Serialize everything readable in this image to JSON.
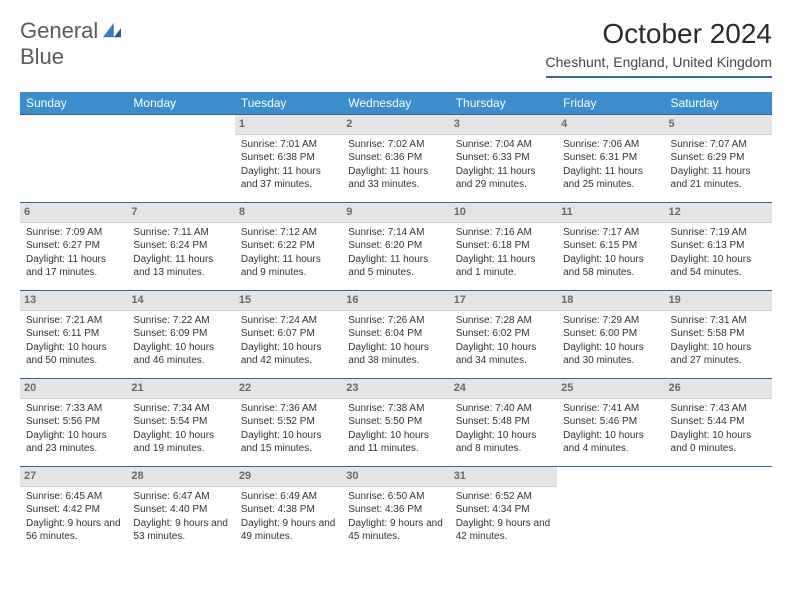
{
  "brand": {
    "line1": "General",
    "line2": "Blue"
  },
  "title": "October 2024",
  "location": "Cheshunt, England, United Kingdom",
  "colors": {
    "header_bg": "#3c8dcc",
    "header_text": "#ffffff",
    "border": "#35689e",
    "daynum_bg": "#e4e4e4",
    "text": "#333333",
    "logo_gray": "#5b5b5b",
    "logo_blue": "#3a7abf",
    "page_bg": "#ffffff"
  },
  "typography": {
    "title_fontsize": 28,
    "location_fontsize": 14,
    "header_fontsize": 12,
    "daynum_fontsize": 11,
    "cell_fontsize": 10
  },
  "weekdays": [
    "Sunday",
    "Monday",
    "Tuesday",
    "Wednesday",
    "Thursday",
    "Friday",
    "Saturday"
  ],
  "weeks": [
    [
      null,
      null,
      {
        "n": "1",
        "sunrise": "Sunrise: 7:01 AM",
        "sunset": "Sunset: 6:38 PM",
        "daylight": "Daylight: 11 hours and 37 minutes."
      },
      {
        "n": "2",
        "sunrise": "Sunrise: 7:02 AM",
        "sunset": "Sunset: 6:36 PM",
        "daylight": "Daylight: 11 hours and 33 minutes."
      },
      {
        "n": "3",
        "sunrise": "Sunrise: 7:04 AM",
        "sunset": "Sunset: 6:33 PM",
        "daylight": "Daylight: 11 hours and 29 minutes."
      },
      {
        "n": "4",
        "sunrise": "Sunrise: 7:06 AM",
        "sunset": "Sunset: 6:31 PM",
        "daylight": "Daylight: 11 hours and 25 minutes."
      },
      {
        "n": "5",
        "sunrise": "Sunrise: 7:07 AM",
        "sunset": "Sunset: 6:29 PM",
        "daylight": "Daylight: 11 hours and 21 minutes."
      }
    ],
    [
      {
        "n": "6",
        "sunrise": "Sunrise: 7:09 AM",
        "sunset": "Sunset: 6:27 PM",
        "daylight": "Daylight: 11 hours and 17 minutes."
      },
      {
        "n": "7",
        "sunrise": "Sunrise: 7:11 AM",
        "sunset": "Sunset: 6:24 PM",
        "daylight": "Daylight: 11 hours and 13 minutes."
      },
      {
        "n": "8",
        "sunrise": "Sunrise: 7:12 AM",
        "sunset": "Sunset: 6:22 PM",
        "daylight": "Daylight: 11 hours and 9 minutes."
      },
      {
        "n": "9",
        "sunrise": "Sunrise: 7:14 AM",
        "sunset": "Sunset: 6:20 PM",
        "daylight": "Daylight: 11 hours and 5 minutes."
      },
      {
        "n": "10",
        "sunrise": "Sunrise: 7:16 AM",
        "sunset": "Sunset: 6:18 PM",
        "daylight": "Daylight: 11 hours and 1 minute."
      },
      {
        "n": "11",
        "sunrise": "Sunrise: 7:17 AM",
        "sunset": "Sunset: 6:15 PM",
        "daylight": "Daylight: 10 hours and 58 minutes."
      },
      {
        "n": "12",
        "sunrise": "Sunrise: 7:19 AM",
        "sunset": "Sunset: 6:13 PM",
        "daylight": "Daylight: 10 hours and 54 minutes."
      }
    ],
    [
      {
        "n": "13",
        "sunrise": "Sunrise: 7:21 AM",
        "sunset": "Sunset: 6:11 PM",
        "daylight": "Daylight: 10 hours and 50 minutes."
      },
      {
        "n": "14",
        "sunrise": "Sunrise: 7:22 AM",
        "sunset": "Sunset: 6:09 PM",
        "daylight": "Daylight: 10 hours and 46 minutes."
      },
      {
        "n": "15",
        "sunrise": "Sunrise: 7:24 AM",
        "sunset": "Sunset: 6:07 PM",
        "daylight": "Daylight: 10 hours and 42 minutes."
      },
      {
        "n": "16",
        "sunrise": "Sunrise: 7:26 AM",
        "sunset": "Sunset: 6:04 PM",
        "daylight": "Daylight: 10 hours and 38 minutes."
      },
      {
        "n": "17",
        "sunrise": "Sunrise: 7:28 AM",
        "sunset": "Sunset: 6:02 PM",
        "daylight": "Daylight: 10 hours and 34 minutes."
      },
      {
        "n": "18",
        "sunrise": "Sunrise: 7:29 AM",
        "sunset": "Sunset: 6:00 PM",
        "daylight": "Daylight: 10 hours and 30 minutes."
      },
      {
        "n": "19",
        "sunrise": "Sunrise: 7:31 AM",
        "sunset": "Sunset: 5:58 PM",
        "daylight": "Daylight: 10 hours and 27 minutes."
      }
    ],
    [
      {
        "n": "20",
        "sunrise": "Sunrise: 7:33 AM",
        "sunset": "Sunset: 5:56 PM",
        "daylight": "Daylight: 10 hours and 23 minutes."
      },
      {
        "n": "21",
        "sunrise": "Sunrise: 7:34 AM",
        "sunset": "Sunset: 5:54 PM",
        "daylight": "Daylight: 10 hours and 19 minutes."
      },
      {
        "n": "22",
        "sunrise": "Sunrise: 7:36 AM",
        "sunset": "Sunset: 5:52 PM",
        "daylight": "Daylight: 10 hours and 15 minutes."
      },
      {
        "n": "23",
        "sunrise": "Sunrise: 7:38 AM",
        "sunset": "Sunset: 5:50 PM",
        "daylight": "Daylight: 10 hours and 11 minutes."
      },
      {
        "n": "24",
        "sunrise": "Sunrise: 7:40 AM",
        "sunset": "Sunset: 5:48 PM",
        "daylight": "Daylight: 10 hours and 8 minutes."
      },
      {
        "n": "25",
        "sunrise": "Sunrise: 7:41 AM",
        "sunset": "Sunset: 5:46 PM",
        "daylight": "Daylight: 10 hours and 4 minutes."
      },
      {
        "n": "26",
        "sunrise": "Sunrise: 7:43 AM",
        "sunset": "Sunset: 5:44 PM",
        "daylight": "Daylight: 10 hours and 0 minutes."
      }
    ],
    [
      {
        "n": "27",
        "sunrise": "Sunrise: 6:45 AM",
        "sunset": "Sunset: 4:42 PM",
        "daylight": "Daylight: 9 hours and 56 minutes."
      },
      {
        "n": "28",
        "sunrise": "Sunrise: 6:47 AM",
        "sunset": "Sunset: 4:40 PM",
        "daylight": "Daylight: 9 hours and 53 minutes."
      },
      {
        "n": "29",
        "sunrise": "Sunrise: 6:49 AM",
        "sunset": "Sunset: 4:38 PM",
        "daylight": "Daylight: 9 hours and 49 minutes."
      },
      {
        "n": "30",
        "sunrise": "Sunrise: 6:50 AM",
        "sunset": "Sunset: 4:36 PM",
        "daylight": "Daylight: 9 hours and 45 minutes."
      },
      {
        "n": "31",
        "sunrise": "Sunrise: 6:52 AM",
        "sunset": "Sunset: 4:34 PM",
        "daylight": "Daylight: 9 hours and 42 minutes."
      },
      null,
      null
    ]
  ]
}
